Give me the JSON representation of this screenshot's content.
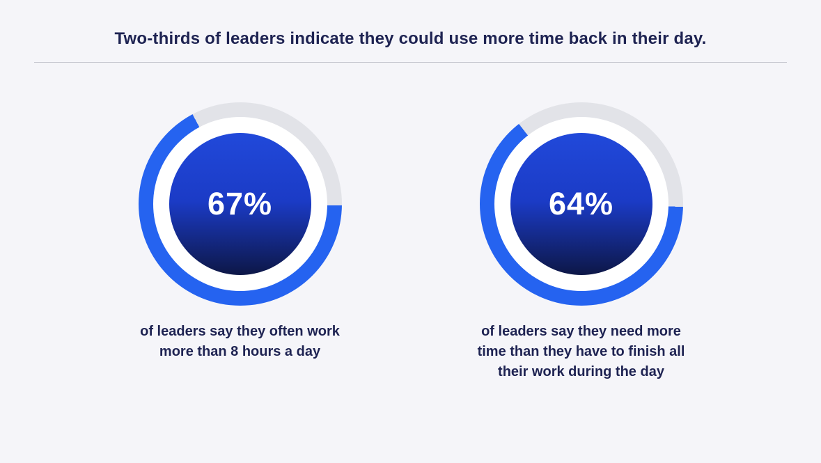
{
  "page": {
    "title": "Two-thirds of leaders indicate they could use more time back in their day."
  },
  "colors": {
    "background": "#f5f5f9",
    "navy_text": "#1e2352",
    "divider": "#c2c3cc",
    "accent_blue": "#2563f0",
    "track_gray": "#e2e3e8",
    "gap_white": "#ffffff",
    "inner_gradient_top": "#2149da",
    "inner_gradient_mid": "#1b3bc6",
    "inner_gradient_bottom": "#0d1747",
    "percent_text": "#ffffff"
  },
  "chart_data": [
    {
      "type": "donut",
      "value": 67,
      "value_label": "67%",
      "caption": "of leaders say they often work\nmore than 8 hours a day",
      "start_angle_deg": -28,
      "progress_color": "#2563f0",
      "track_color": "#e2e3e8",
      "legend_position": "none",
      "title": ""
    },
    {
      "type": "donut",
      "value": 64,
      "value_label": "64%",
      "caption": "of leaders say they need more\ntime than they have to finish all\ntheir work during the day",
      "start_angle_deg": -38,
      "progress_color": "#2563f0",
      "track_color": "#e2e3e8",
      "legend_position": "none",
      "title": ""
    }
  ]
}
